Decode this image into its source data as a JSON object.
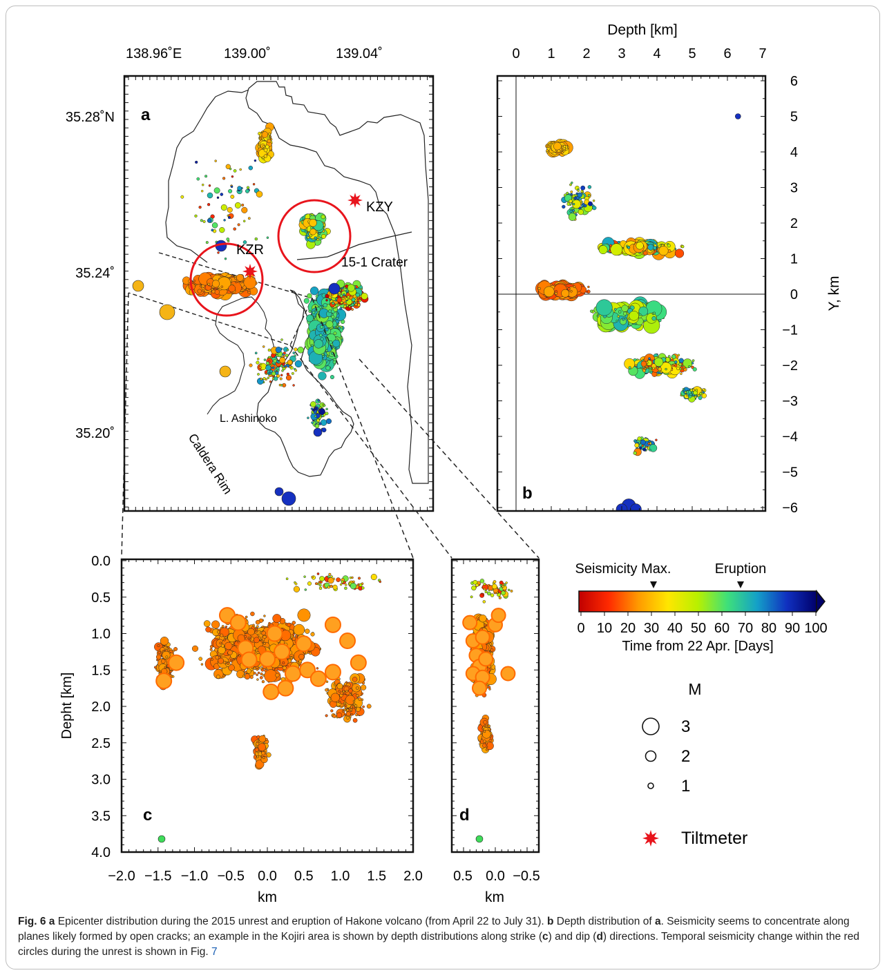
{
  "panel_labels": {
    "a": "a",
    "b": "b",
    "c": "c",
    "d": "d"
  },
  "map": {
    "x_ticks": [
      "138.96˚E",
      "139.00˚",
      "139.04˚"
    ],
    "y_ticks": [
      "35.28˚N",
      "35.24˚",
      "35.20˚"
    ],
    "stations": [
      "KZY",
      "KZR"
    ],
    "labels": [
      "15-1 Crater",
      "L. Ashinoko",
      "Caldera Rim"
    ]
  },
  "depth_panel": {
    "title": "Depth [km]",
    "x_ticks": [
      "0",
      "1",
      "2",
      "3",
      "4",
      "5",
      "6",
      "7"
    ],
    "y_ticks": [
      "6",
      "5",
      "4",
      "3",
      "2",
      "1",
      "0",
      "−1",
      "−2",
      "−3",
      "−4",
      "−5",
      "−6"
    ],
    "ylabel": "Y, km"
  },
  "strike_panel": {
    "ylabel": "Depht [km]",
    "y_ticks": [
      "0.0",
      "0.5",
      "1.0",
      "1.5",
      "2.0",
      "2.5",
      "3.0",
      "3.5",
      "4.0"
    ],
    "x_ticks": [
      "−2.0",
      "−1.5",
      "−1.0",
      "−0.5",
      "0.0",
      "0.5",
      "1.0",
      "1.5",
      "2.0"
    ],
    "xlabel": "km"
  },
  "dip_panel": {
    "x_ticks": [
      "0.5",
      "0.0",
      "−0.5"
    ],
    "xlabel": "km"
  },
  "colorbar": {
    "marker_labels": [
      "Seismicity Max.",
      "Eruption"
    ],
    "ticks": [
      "0",
      "10",
      "20",
      "30",
      "40",
      "50",
      "60",
      "70",
      "80",
      "90",
      "100"
    ],
    "label": "Time from 22 Apr. [Days]",
    "gradient": [
      "#c00000",
      "#ff2a00",
      "#ff9a00",
      "#ffe600",
      "#b8f000",
      "#3ee07a",
      "#14a0c8",
      "#1030c0",
      "#00006a"
    ]
  },
  "magnitude_legend": {
    "title": "M",
    "items": [
      "3",
      "2",
      "1"
    ],
    "tiltmeter_label": "Tiltmeter"
  },
  "colors": {
    "tiltmeter": "#e8141c",
    "circle": "#e8141c",
    "orange": "#f26a1e",
    "gold": "#f5b416",
    "green": "#3fdc5a",
    "blue": "#1530c0",
    "red": "#d0001a"
  },
  "caption": {
    "fig": "Fig. 6",
    "p1": "Epicenter distribution during the 2015 unrest and eruption of Hakone volcano (from April 22 to July 31).",
    "p2": "Depth distribution of",
    "p3": ". Seismicity seems to concentrate along planes likely formed by open cracks; an example in the Kojiri area is shown by depth distributions along strike (",
    "p4": ") and dip (",
    "p5": ") directions. Temporal seismicity change within the red circles during the unrest is shown in Fig.",
    "ref": "7"
  }
}
